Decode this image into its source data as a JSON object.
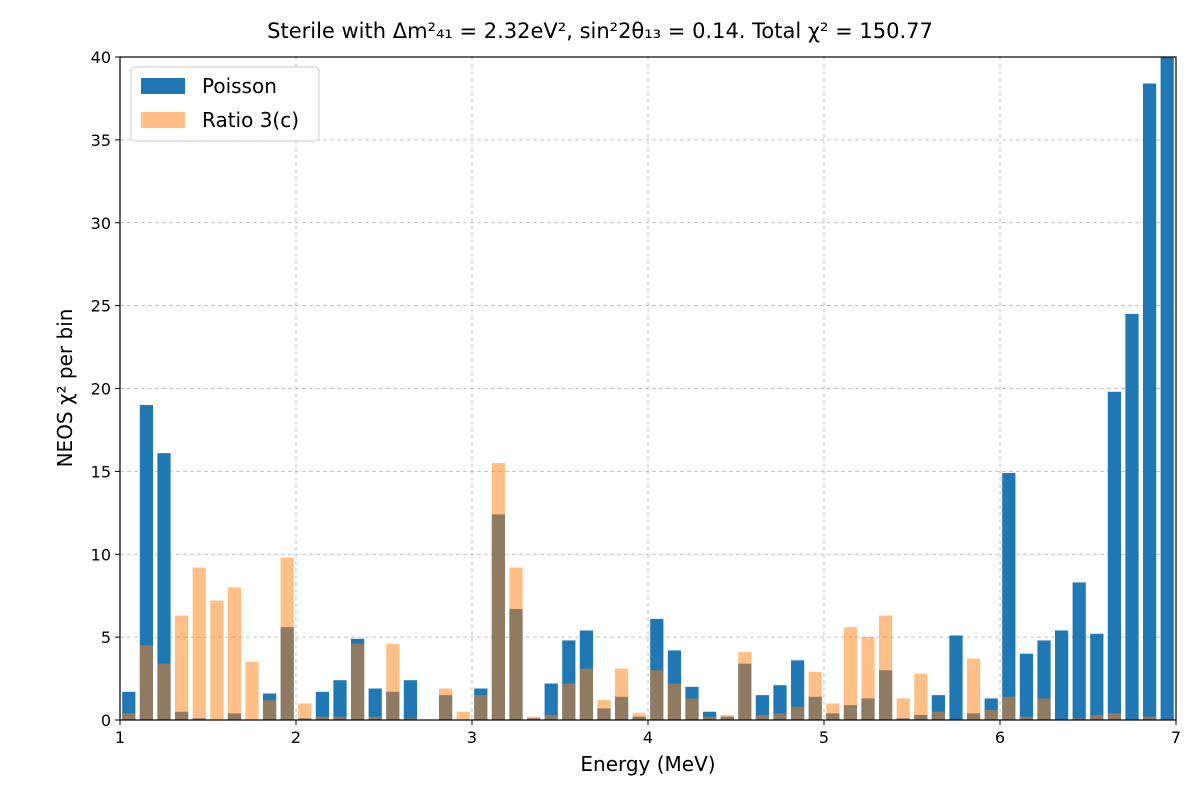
{
  "chart_data": {
    "type": "bar",
    "title": "Sterile with Δm²₄₁ = 2.32eV², sin²2θ₁₃ = 0.14. Total χ² = 150.77",
    "xlabel": "Energy (MeV)",
    "ylabel": "NEOS χ² per bin",
    "xlim": [
      1,
      7
    ],
    "ylim": [
      0,
      40
    ],
    "x_ticks": [
      "1",
      "2",
      "3",
      "4",
      "5",
      "6",
      "7"
    ],
    "y_ticks": [
      "0",
      "5",
      "10",
      "15",
      "20",
      "25",
      "30",
      "35",
      "40"
    ],
    "grid": true,
    "legend_position": "upper-left",
    "bar_width": 0.075,
    "x": [
      1.05,
      1.15,
      1.25,
      1.35,
      1.45,
      1.55,
      1.65,
      1.75,
      1.85,
      1.95,
      2.05,
      2.15,
      2.25,
      2.35,
      2.45,
      2.55,
      2.65,
      2.75,
      2.85,
      2.95,
      3.05,
      3.15,
      3.25,
      3.35,
      3.45,
      3.55,
      3.65,
      3.75,
      3.85,
      3.95,
      4.05,
      4.15,
      4.25,
      4.35,
      4.45,
      4.55,
      4.65,
      4.75,
      4.85,
      4.95,
      5.05,
      5.15,
      5.25,
      5.35,
      5.45,
      5.55,
      5.65,
      5.75,
      5.85,
      5.95,
      6.05,
      6.15,
      6.25,
      6.35,
      6.45,
      6.55,
      6.65,
      6.75,
      6.85,
      6.95
    ],
    "series": [
      {
        "name": "Poisson",
        "color": "#1f77b4",
        "opacity": 1.0,
        "values": [
          1.7,
          19.0,
          16.1,
          0.5,
          0.1,
          0.0,
          0.4,
          0.0,
          1.6,
          5.6,
          0.1,
          1.7,
          2.4,
          4.9,
          1.9,
          1.7,
          2.4,
          0.0,
          1.5,
          0.0,
          1.9,
          12.4,
          6.7,
          0.1,
          2.2,
          4.8,
          5.4,
          0.7,
          1.4,
          0.2,
          6.1,
          4.2,
          2.0,
          0.5,
          0.2,
          3.4,
          1.5,
          2.1,
          3.6,
          1.4,
          0.4,
          0.9,
          1.3,
          3.0,
          0.1,
          0.3,
          1.5,
          5.1,
          0.4,
          1.3,
          14.9,
          4.0,
          4.8,
          5.4,
          8.3,
          5.2,
          19.8,
          24.5,
          38.4,
          40.0
        ]
      },
      {
        "name": "Ratio 3(c)",
        "color": "#ff7f0e",
        "opacity": 0.5,
        "values": [
          0.4,
          4.5,
          3.4,
          6.3,
          9.2,
          7.2,
          8.0,
          3.5,
          1.2,
          9.8,
          1.0,
          0.2,
          0.2,
          4.6,
          0.2,
          4.6,
          0.1,
          0.0,
          1.9,
          0.5,
          1.5,
          15.5,
          9.2,
          0.2,
          0.3,
          2.2,
          3.1,
          1.2,
          3.1,
          0.4,
          3.0,
          2.2,
          1.3,
          0.2,
          0.3,
          4.1,
          0.3,
          0.4,
          0.8,
          2.9,
          1.0,
          5.6,
          5.0,
          6.3,
          1.3,
          2.8,
          0.5,
          0.0,
          3.7,
          0.6,
          1.4,
          0.2,
          1.3,
          0.0,
          0.1,
          0.3,
          0.4,
          0.0,
          0.2,
          0.0
        ]
      }
    ]
  }
}
